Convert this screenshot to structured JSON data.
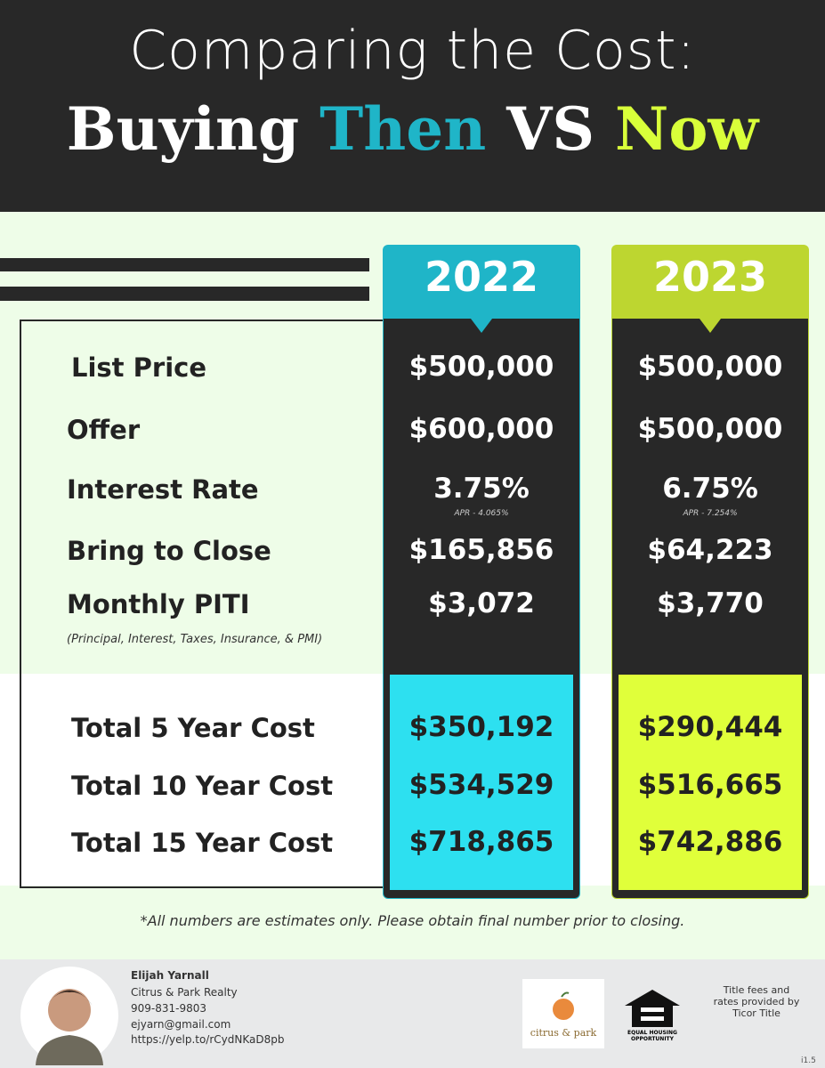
{
  "header": {
    "line1": "Comparing the Cost:",
    "line2": [
      "Buying",
      "Then",
      "VS",
      "Now"
    ]
  },
  "columns": [
    "2022",
    "2023"
  ],
  "rows": [
    {
      "label": "List Price",
      "values": [
        "$500,000",
        "$500,000"
      ]
    },
    {
      "label": "Offer",
      "values": [
        "$600,000",
        "$500,000"
      ]
    },
    {
      "label": "Interest Rate",
      "values": [
        "3.75%",
        "6.75%"
      ],
      "notes": [
        "APR - 4.065%",
        "APR - 7.254%"
      ]
    },
    {
      "label": "Bring to Close",
      "values": [
        "$165,856",
        "$64,223"
      ]
    },
    {
      "label": "Monthly PITI",
      "values": [
        "$3,072",
        "$3,770"
      ]
    }
  ],
  "piti_note": "(Principal, Interest, Taxes, Insurance, & PMI)",
  "totals": [
    {
      "label": "Total 5 Year Cost",
      "values": [
        "$350,192",
        "$290,444"
      ]
    },
    {
      "label": "Total 10 Year Cost",
      "values": [
        "$534,529",
        "$516,665"
      ]
    },
    {
      "label": "Total 15 Year Cost",
      "values": [
        "$718,865",
        "$742,886"
      ]
    }
  ],
  "disclaimer": "*All numbers are estimates only. Please obtain final number prior to closing.",
  "footer": {
    "name": "Elijah Yarnall",
    "company": "Citrus & Park Realty",
    "phone": "909-831-9803",
    "email": "ejyarn@gmail.com",
    "url": "https://yelp.to/rCydNKaD8pb",
    "logo": "citrus & park",
    "eho": [
      "EQUAL HOUSING",
      "OPPORTUNITY"
    ],
    "credit": [
      "Title fees and",
      "rates provided by",
      "Ticor Title"
    ],
    "version": "i1.5"
  }
}
